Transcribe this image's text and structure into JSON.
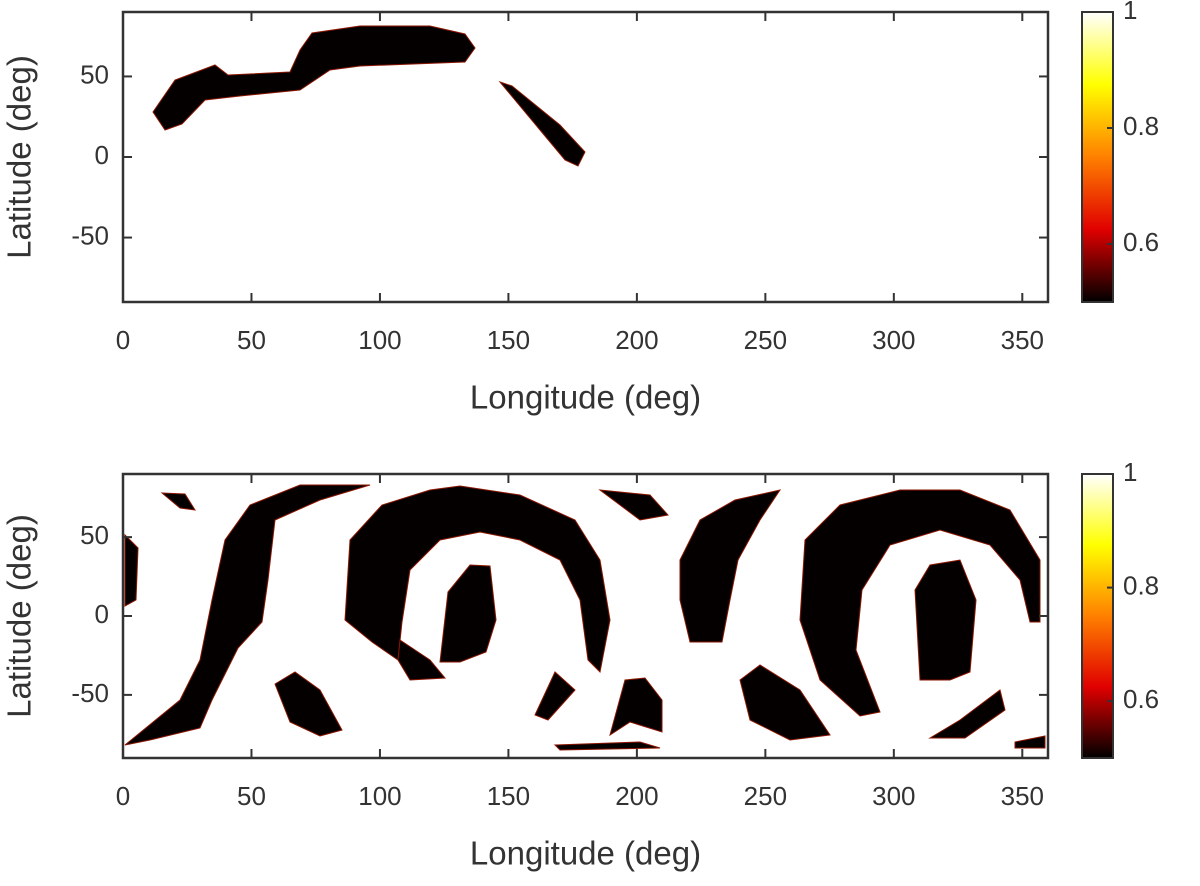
{
  "chart_data": [
    {
      "type": "heatmap",
      "xlabel": "Longitude (deg)",
      "ylabel": "Latitude (deg)",
      "xlim": [
        0,
        360
      ],
      "ylim": [
        -90,
        90
      ],
      "xticks": [
        0,
        50,
        100,
        150,
        200,
        250,
        300,
        350
      ],
      "yticks": [
        -50,
        0,
        50
      ],
      "colormap": "hot",
      "clim": [
        0.5,
        1
      ],
      "cticks": [
        0.6,
        0.8,
        1
      ]
    },
    {
      "type": "heatmap",
      "xlabel": "Longitude (deg)",
      "ylabel": "Latitude (deg)",
      "xlim": [
        0,
        360
      ],
      "ylim": [
        -90,
        90
      ],
      "xticks": [
        0,
        50,
        100,
        150,
        200,
        250,
        300,
        350
      ],
      "yticks": [
        -50,
        0,
        50
      ],
      "colormap": "hot",
      "clim": [
        0.5,
        1
      ],
      "cticks": [
        0.6,
        0.8,
        1
      ]
    }
  ]
}
